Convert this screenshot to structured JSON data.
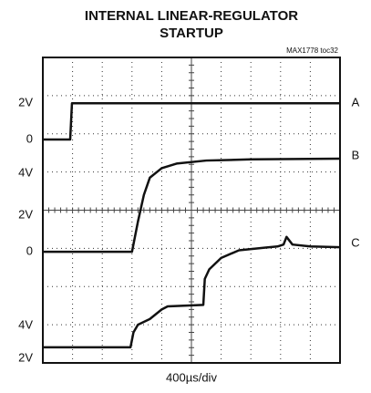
{
  "chart_data": {
    "type": "line",
    "title": [
      "INTERNAL LINEAR-REGULATOR",
      "STARTUP"
    ],
    "annotation": "MAX1778 toc32",
    "xlabel": "400µs/div",
    "channel_scale_labels": [
      "2V",
      "0",
      "4V",
      "2V",
      "0",
      "4V",
      "2V"
    ],
    "xlim": [
      0,
      10
    ],
    "ylim": [
      0,
      8
    ],
    "xticks": [
      0,
      1,
      2,
      3,
      4,
      5,
      6,
      7,
      8,
      9,
      10
    ],
    "yticks": [
      0,
      1,
      2,
      3,
      4,
      5,
      6,
      7,
      8
    ],
    "grid": true,
    "series": [
      {
        "name": "A",
        "color": "#111111",
        "x": [
          0,
          0.92,
          0.98,
          10
        ],
        "values": [
          5.85,
          5.85,
          6.8,
          6.8
        ]
      },
      {
        "name": "B",
        "color": "#111111",
        "x": [
          0,
          3.0,
          3.2,
          3.4,
          3.6,
          4.0,
          4.5,
          5.5,
          7,
          10
        ],
        "values": [
          2.91,
          2.91,
          3.7,
          4.4,
          4.85,
          5.1,
          5.22,
          5.3,
          5.33,
          5.35
        ]
      },
      {
        "name": "C",
        "color": "#111111",
        "x": [
          0,
          2.95,
          3.05,
          3.2,
          3.6,
          4.0,
          4.2,
          5.4,
          5.45,
          5.6,
          6.0,
          6.6,
          7.5,
          7.9,
          8.1,
          8.2,
          8.4,
          9,
          10
        ],
        "values": [
          0.41,
          0.41,
          0.8,
          1.0,
          1.15,
          1.4,
          1.48,
          1.52,
          2.2,
          2.45,
          2.75,
          2.95,
          3.02,
          3.05,
          3.1,
          3.3,
          3.1,
          3.05,
          3.03
        ]
      }
    ]
  }
}
